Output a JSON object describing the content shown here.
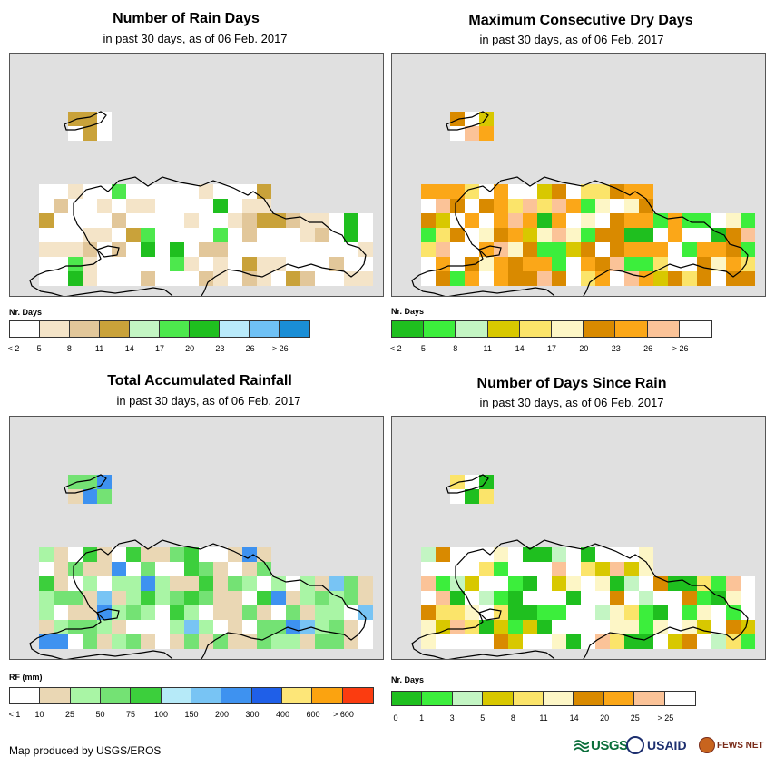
{
  "panels": [
    {
      "title": "Number of Rain Days",
      "subtitle": "in past 30 days, as of 06 Feb. 2017",
      "legend_title": "Nr. Days",
      "legend_colors": [
        "#ffffff",
        "#f4e4c8",
        "#e2c79a",
        "#c9a23a",
        "#c3f5c3",
        "#4de84d",
        "#1fbf1f",
        "#b9eafa",
        "#6fc1f5",
        "#1a8ed6"
      ],
      "legend_labels": [
        "< 2",
        "5",
        "8",
        "11",
        "14",
        "17",
        "20",
        "23",
        "26",
        "> 26"
      ],
      "cells": "rain_days"
    },
    {
      "title": "Maximum Consecutive Dry Days",
      "subtitle": "in past 30 days, as of 06 Feb. 2017",
      "legend_title": "Nr. Days",
      "legend_colors": [
        "#1fbf1f",
        "#3cee3c",
        "#c3f5c3",
        "#d8c800",
        "#fbe46a",
        "#fdf6c6",
        "#d98a00",
        "#fba718",
        "#fbc398",
        "#ffffff"
      ],
      "legend_labels": [
        "< 2",
        "5",
        "8",
        "11",
        "14",
        "17",
        "20",
        "23",
        "26",
        "> 26"
      ],
      "cells": "dry_days"
    },
    {
      "title": "Total Accumulated Rainfall",
      "subtitle": "in past 30 days, as of 06 Feb. 2017",
      "legend_title": "RF (mm)",
      "legend_colors": [
        "#ffffff",
        "#ead7b4",
        "#a9f5a5",
        "#74e274",
        "#3ccf3c",
        "#b6eaf8",
        "#78c4f4",
        "#3e92f0",
        "#1f5fe8",
        "#fde678",
        "#fba310",
        "#fb3c10"
      ],
      "legend_labels": [
        "< 1",
        "10",
        "25",
        "50",
        "75",
        "100",
        "150",
        "200",
        "300",
        "400",
        "600",
        "> 600"
      ],
      "cells": "rainfall"
    },
    {
      "title": "Number of Days Since Rain",
      "subtitle": "in past 30 days, as of 06 Feb. 2017",
      "legend_title": "Nr. Days",
      "legend_colors": [
        "#1fbf1f",
        "#3cee3c",
        "#c3f5c3",
        "#d8c800",
        "#fbe46a",
        "#fdf6c6",
        "#d98a00",
        "#fba718",
        "#fbc398",
        "#ffffff"
      ],
      "legend_labels": [
        "0",
        "1",
        "3",
        "5",
        "8",
        "11",
        "14",
        "20",
        "25",
        "> 25"
      ],
      "cells": "since_rain"
    }
  ],
  "footer": {
    "credit": "Map produced by USGS/EROS",
    "logo_usgs": "USGS",
    "logo_usaid": "USAID",
    "logo_fews": "FEWS NET"
  }
}
